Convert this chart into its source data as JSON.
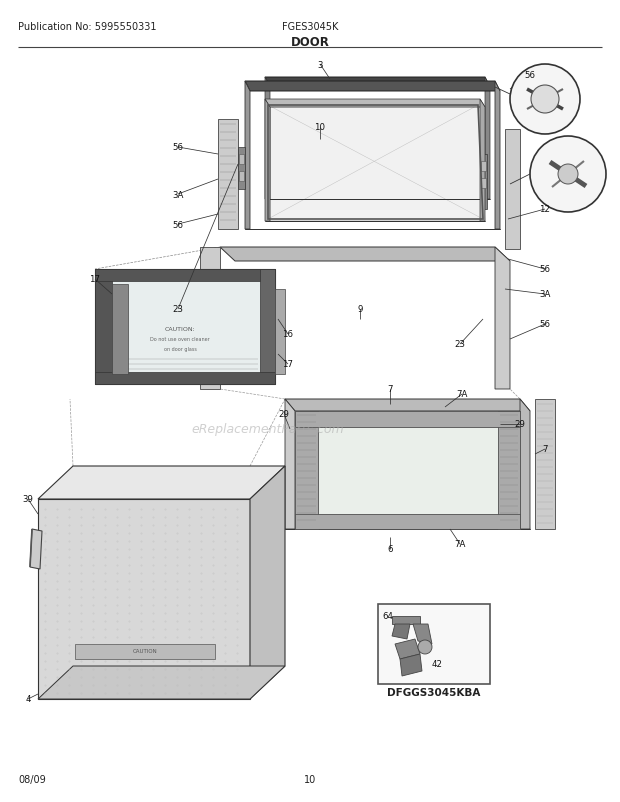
{
  "pub_no": "Publication No: 5995550331",
  "model": "FGES3045K",
  "title": "DOOR",
  "date": "08/09",
  "page": "10",
  "diagram_label": "DFGGS3045KBA",
  "watermark": "eReplacementParts.com",
  "bg_color": "#ffffff"
}
